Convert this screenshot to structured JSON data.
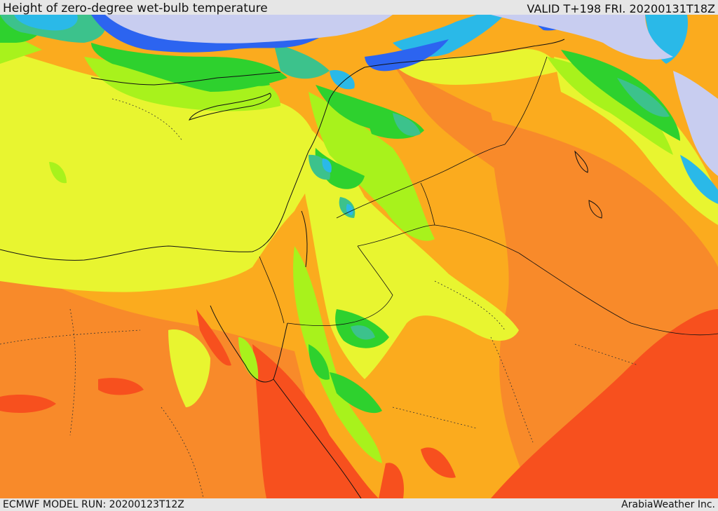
{
  "header": {
    "title": "Height of zero-degree wet-bulb temperature",
    "valid": "VALID T+198 FRI. 20200131T18Z"
  },
  "footer": {
    "model_run": "ECMWF MODEL RUN: 20200123T12Z",
    "brand": "ArabiaWeather Inc."
  },
  "palette": {
    "red": "#f7501e",
    "dark_orange": "#f88a2a",
    "orange": "#fbab1e",
    "yellow": "#e8f530",
    "lime": "#a8f21c",
    "green": "#2ed12e",
    "teal": "#3cc28c",
    "cyan": "#2ab9e8",
    "blue": "#2c64f0",
    "lavender": "#c8cdf0"
  }
}
